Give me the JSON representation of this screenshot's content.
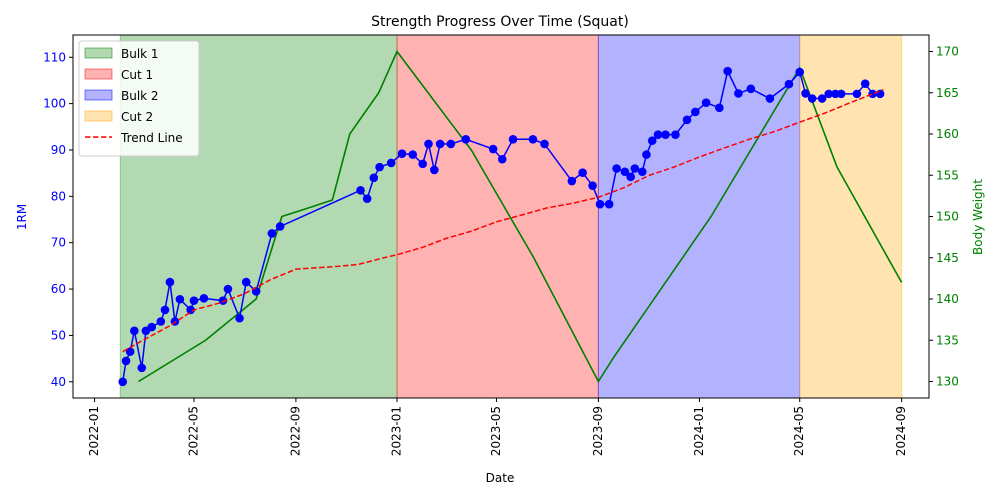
{
  "chart_data": {
    "type": "line",
    "title": "Strength Progress Over Time (Squat)",
    "xlabel": "Date",
    "ylabel": "1RM",
    "y2label": "Body Weight",
    "xlim": [
      "2021-12-06",
      "2024-10-04"
    ],
    "ylim": [
      36.5,
      114.8
    ],
    "y2lim": [
      128,
      172
    ],
    "x_ticks": [
      "2022-01",
      "2022-05",
      "2022-09",
      "2023-01",
      "2023-05",
      "2023-09",
      "2024-01",
      "2024-05",
      "2024-09"
    ],
    "y_ticks": [
      40,
      50,
      60,
      70,
      80,
      90,
      100,
      110
    ],
    "y2_ticks": [
      130,
      135,
      140,
      145,
      150,
      155,
      160,
      165,
      170
    ],
    "colors": {
      "one_rm": "#0000ff",
      "body_weight": "#008000",
      "trend": "#ff0000",
      "y1_axis": "#0000ff",
      "y2_axis": "#008000"
    },
    "phases": [
      {
        "name": "Bulk 1",
        "start": "2022-02-01",
        "end": "2023-01-01",
        "color": "#008000",
        "opacity": 0.3
      },
      {
        "name": "Cut 1",
        "start": "2023-01-01",
        "end": "2023-09-01",
        "color": "#ff0000",
        "opacity": 0.3
      },
      {
        "name": "Bulk 2",
        "start": "2023-09-01",
        "end": "2024-05-01",
        "color": "#0000ff",
        "opacity": 0.3
      },
      {
        "name": "Cut 2",
        "start": "2024-05-01",
        "end": "2024-09-01",
        "color": "#ffa500",
        "opacity": 0.3
      }
    ],
    "legend": {
      "position": "top-left",
      "entries": [
        "Bulk 1",
        "Cut 1",
        "Bulk 2",
        "Cut 2",
        "Trend Line"
      ]
    },
    "series": [
      {
        "name": "1RM",
        "axis": "left",
        "style": "line-markers",
        "points": [
          [
            "2022-02-04",
            40.0
          ],
          [
            "2022-02-08",
            44.5
          ],
          [
            "2022-02-13",
            46.5
          ],
          [
            "2022-02-18",
            51.0
          ],
          [
            "2022-02-27",
            43.0
          ],
          [
            "2022-03-04",
            51.0
          ],
          [
            "2022-03-11",
            51.8
          ],
          [
            "2022-03-22",
            53.0
          ],
          [
            "2022-03-27",
            55.5
          ],
          [
            "2022-04-02",
            61.5
          ],
          [
            "2022-04-08",
            53.0
          ],
          [
            "2022-04-14",
            57.8
          ],
          [
            "2022-04-27",
            55.5
          ],
          [
            "2022-05-01",
            57.5
          ],
          [
            "2022-05-13",
            58.0
          ],
          [
            "2022-06-05",
            57.5
          ],
          [
            "2022-06-11",
            60.0
          ],
          [
            "2022-06-25",
            53.7
          ],
          [
            "2022-07-03",
            61.5
          ],
          [
            "2022-07-15",
            59.5
          ],
          [
            "2022-08-03",
            72.0
          ],
          [
            "2022-08-13",
            73.5
          ],
          [
            "2022-11-18",
            81.3
          ],
          [
            "2022-11-26",
            79.5
          ],
          [
            "2022-12-04",
            84.0
          ],
          [
            "2022-12-11",
            86.3
          ],
          [
            "2022-12-25",
            87.2
          ],
          [
            "2023-01-07",
            89.2
          ],
          [
            "2023-01-20",
            89.0
          ],
          [
            "2023-02-01",
            87.0
          ],
          [
            "2023-02-08",
            91.3
          ],
          [
            "2023-02-15",
            85.7
          ],
          [
            "2023-02-22",
            91.3
          ],
          [
            "2023-03-07",
            91.3
          ],
          [
            "2023-03-25",
            92.3
          ],
          [
            "2023-04-27",
            90.2
          ],
          [
            "2023-05-08",
            88.0
          ],
          [
            "2023-05-21",
            92.3
          ],
          [
            "2023-06-14",
            92.3
          ],
          [
            "2023-06-28",
            91.3
          ],
          [
            "2023-07-31",
            83.3
          ],
          [
            "2023-08-13",
            85.1
          ],
          [
            "2023-08-25",
            82.3
          ],
          [
            "2023-09-03",
            78.3
          ],
          [
            "2023-09-14",
            78.3
          ],
          [
            "2023-09-23",
            86.0
          ],
          [
            "2023-10-03",
            85.3
          ],
          [
            "2023-10-10",
            84.2
          ],
          [
            "2023-10-15",
            86.0
          ],
          [
            "2023-10-24",
            85.3
          ],
          [
            "2023-10-29",
            89.0
          ],
          [
            "2023-11-05",
            92.0
          ],
          [
            "2023-11-12",
            93.3
          ],
          [
            "2023-11-21",
            93.3
          ],
          [
            "2023-12-03",
            93.3
          ],
          [
            "2023-12-17",
            96.5
          ],
          [
            "2023-12-27",
            98.2
          ],
          [
            "2024-01-09",
            100.2
          ],
          [
            "2024-01-25",
            99.1
          ],
          [
            "2024-02-04",
            107.0
          ],
          [
            "2024-02-17",
            102.2
          ],
          [
            "2024-03-03",
            103.2
          ],
          [
            "2024-03-26",
            101.1
          ],
          [
            "2024-04-18",
            104.2
          ],
          [
            "2024-05-01",
            106.8
          ],
          [
            "2024-05-08",
            102.2
          ],
          [
            "2024-05-16",
            101.1
          ],
          [
            "2024-05-28",
            101.1
          ],
          [
            "2024-06-05",
            102.1
          ],
          [
            "2024-06-13",
            102.1
          ],
          [
            "2024-06-20",
            102.1
          ],
          [
            "2024-07-09",
            102.1
          ],
          [
            "2024-07-19",
            104.3
          ],
          [
            "2024-07-28",
            102.1
          ],
          [
            "2024-08-06",
            102.1
          ]
        ]
      },
      {
        "name": "Body Weight",
        "axis": "right",
        "style": "line",
        "points": [
          [
            "2022-02-23",
            130
          ],
          [
            "2022-05-15",
            135
          ],
          [
            "2022-07-15",
            140
          ],
          [
            "2022-08-15",
            150
          ],
          [
            "2022-09-15",
            151
          ],
          [
            "2022-10-15",
            152
          ],
          [
            "2022-11-05",
            160
          ],
          [
            "2022-12-10",
            165
          ],
          [
            "2023-01-01",
            170
          ],
          [
            "2023-04-01",
            158
          ],
          [
            "2023-06-15",
            145
          ],
          [
            "2023-09-01",
            130
          ],
          [
            "2023-09-20",
            133
          ],
          [
            "2024-01-15",
            150
          ],
          [
            "2024-05-01",
            168
          ],
          [
            "2024-06-15",
            156
          ],
          [
            "2024-09-01",
            142
          ]
        ]
      },
      {
        "name": "Trend Line",
        "axis": "left",
        "style": "dashed",
        "points": [
          [
            "2022-02-04",
            46.5
          ],
          [
            "2022-03-01",
            49.0
          ],
          [
            "2022-04-01",
            52.0
          ],
          [
            "2022-05-01",
            55.5
          ],
          [
            "2022-06-01",
            57.0
          ],
          [
            "2022-07-01",
            59.0
          ],
          [
            "2022-08-01",
            62.0
          ],
          [
            "2022-09-01",
            64.3
          ],
          [
            "2022-10-15",
            64.8
          ],
          [
            "2022-11-15",
            65.3
          ],
          [
            "2022-12-15",
            66.7
          ],
          [
            "2023-01-01",
            67.4
          ],
          [
            "2023-02-01",
            69.0
          ],
          [
            "2023-03-01",
            70.9
          ],
          [
            "2023-04-01",
            72.5
          ],
          [
            "2023-05-01",
            74.5
          ],
          [
            "2023-06-01",
            76.0
          ],
          [
            "2023-07-01",
            77.5
          ],
          [
            "2023-08-01",
            78.5
          ],
          [
            "2023-09-01",
            79.8
          ],
          [
            "2023-10-01",
            81.8
          ],
          [
            "2023-11-01",
            84.5
          ],
          [
            "2023-12-01",
            86.3
          ],
          [
            "2024-01-01",
            88.5
          ],
          [
            "2024-02-01",
            90.5
          ],
          [
            "2024-03-01",
            92.3
          ],
          [
            "2024-04-01",
            94.0
          ],
          [
            "2024-05-01",
            96.0
          ],
          [
            "2024-06-01",
            98.0
          ],
          [
            "2024-07-01",
            100.2
          ],
          [
            "2024-08-10",
            103.0
          ]
        ]
      }
    ]
  }
}
